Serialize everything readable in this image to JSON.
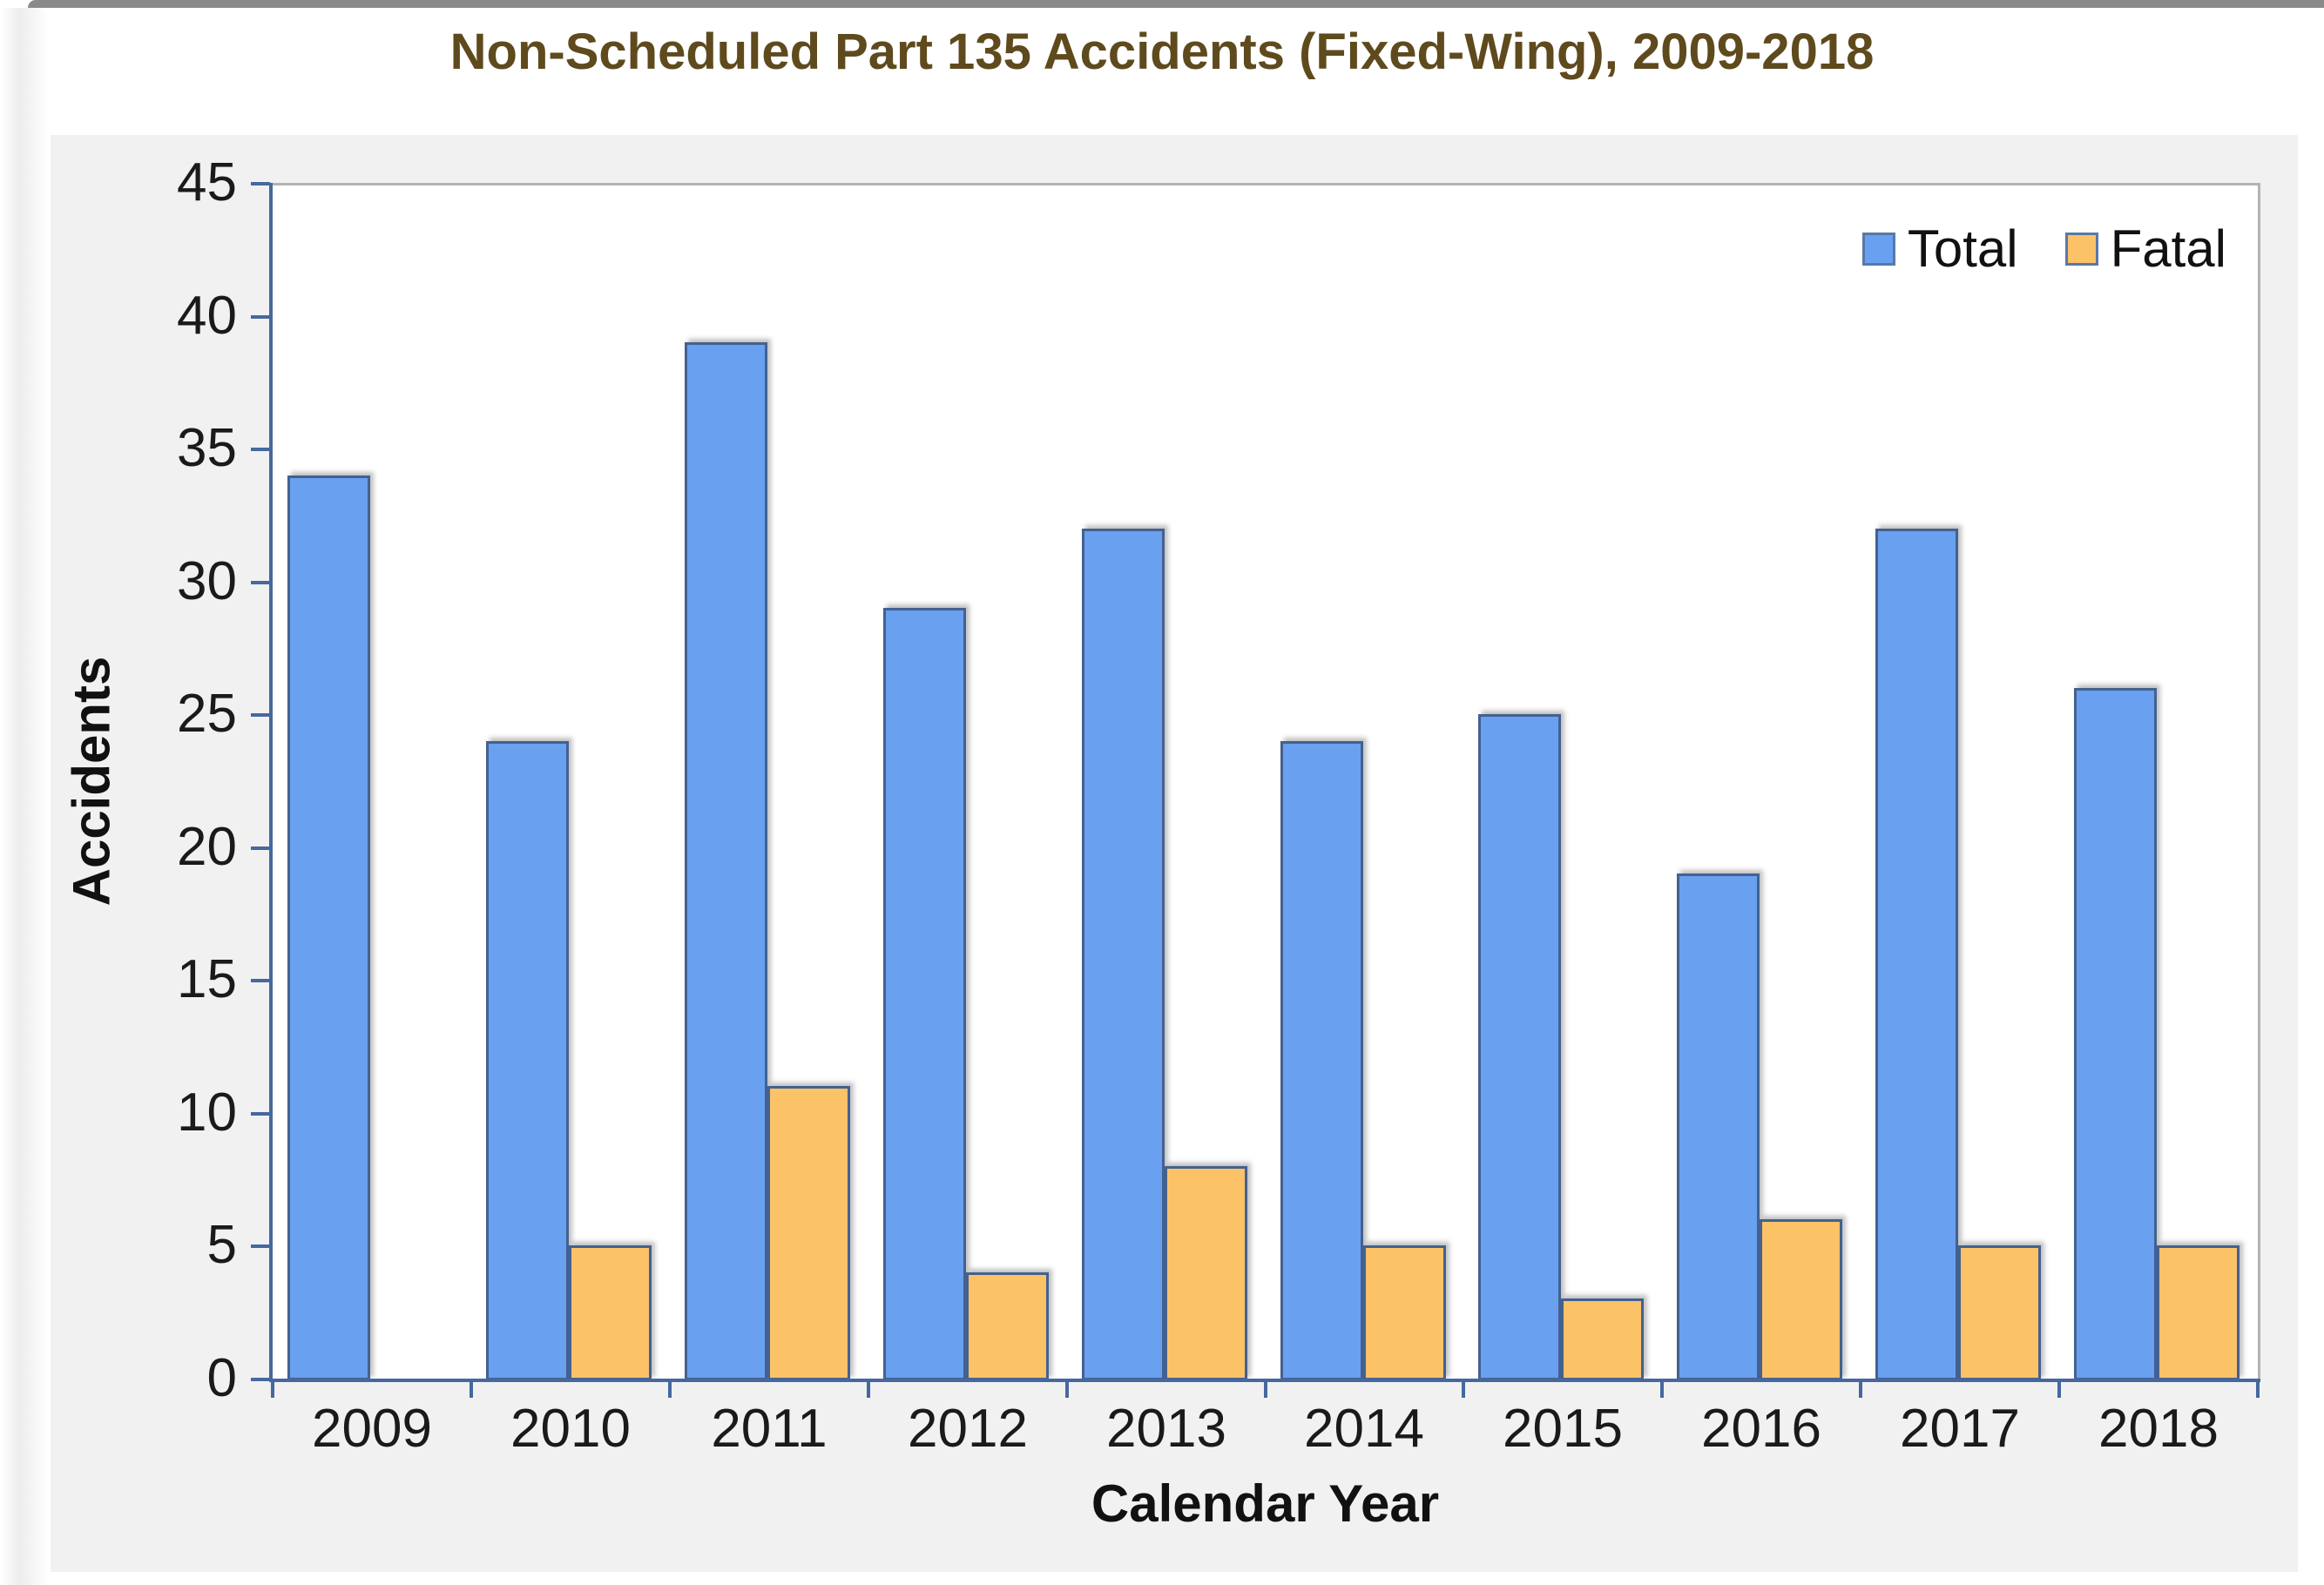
{
  "window": {
    "top_strip_color": "#8A8A8A"
  },
  "chart_data": {
    "type": "bar",
    "title": "Non-Scheduled Part 135 Accidents (Fixed-Wing), 2009-2018",
    "xlabel": "Calendar Year",
    "ylabel": "Accidents",
    "categories": [
      "2009",
      "2010",
      "2011",
      "2012",
      "2013",
      "2014",
      "2015",
      "2016",
      "2017",
      "2018"
    ],
    "series": [
      {
        "name": "Total",
        "color": "#69A0F0",
        "values": [
          34,
          24,
          39,
          29,
          32,
          24,
          25,
          19,
          32,
          26
        ]
      },
      {
        "name": "Fatal",
        "color": "#FBC268",
        "values": [
          0,
          5,
          11,
          4,
          8,
          5,
          3,
          6,
          5,
          5
        ]
      }
    ],
    "ylim": [
      0,
      45
    ],
    "ytick_step": 5,
    "ytick_labels": [
      "0",
      "5",
      "10",
      "15",
      "20",
      "25",
      "30",
      "35",
      "40",
      "45"
    ],
    "grid": "top-border-only",
    "legend_position": "top-right-inside",
    "colors": {
      "bar_border": "#44618F",
      "axis": "#46689E",
      "plot_border": "#B3B3B3",
      "title_text": "#5E4A1C",
      "tick_text": "#1A1A1A",
      "panel_bg": "#F1F1F1",
      "plot_bg": "#FFFFFF",
      "page_bg": "#FFFFFF"
    }
  }
}
